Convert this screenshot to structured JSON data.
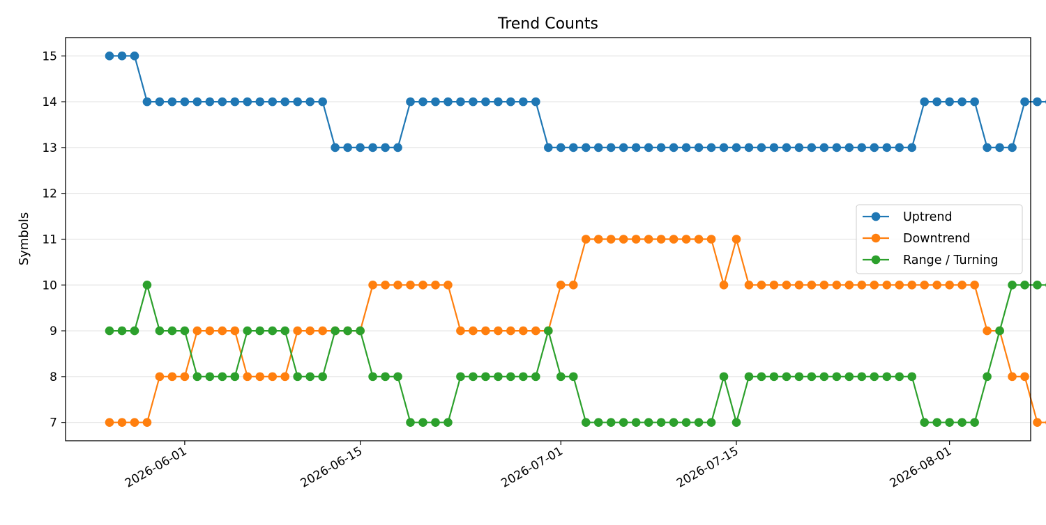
{
  "chart_data": {
    "type": "line",
    "title": "Trend Counts",
    "xlabel": "",
    "ylabel": "Symbols",
    "start_date": "2026-05-26",
    "x_tick_labels": [
      "2026-06-01",
      "2026-06-15",
      "2026-07-01",
      "2026-07-15",
      "2026-08-01"
    ],
    "y_ticks": [
      7,
      8,
      9,
      10,
      11,
      12,
      13,
      14,
      15
    ],
    "ylim": [
      6.6,
      15.4
    ],
    "grid": "horizontal",
    "legend_position": "right",
    "series": [
      {
        "name": "Uptrend",
        "color": "#1f77b4",
        "values": [
          15,
          15,
          15,
          14,
          14,
          14,
          14,
          14,
          14,
          14,
          14,
          14,
          14,
          14,
          14,
          14,
          14,
          14,
          13,
          13,
          13,
          13,
          13,
          13,
          14,
          14,
          14,
          14,
          14,
          14,
          14,
          14,
          14,
          14,
          14,
          13,
          13,
          13,
          13,
          13,
          13,
          13,
          13,
          13,
          13,
          13,
          13,
          13,
          13,
          13,
          13,
          13,
          13,
          13,
          13,
          13,
          13,
          13,
          13,
          13,
          13,
          13,
          13,
          13,
          13,
          14,
          14,
          14,
          14,
          14,
          13,
          13,
          13,
          14,
          14,
          14,
          14
        ]
      },
      {
        "name": "Downtrend",
        "color": "#ff7f0e",
        "values": [
          7,
          7,
          7,
          7,
          8,
          8,
          8,
          9,
          9,
          9,
          9,
          8,
          8,
          8,
          8,
          9,
          9,
          9,
          9,
          9,
          9,
          10,
          10,
          10,
          10,
          10,
          10,
          10,
          9,
          9,
          9,
          9,
          9,
          9,
          9,
          9,
          10,
          10,
          11,
          11,
          11,
          11,
          11,
          11,
          11,
          11,
          11,
          11,
          11,
          10,
          11,
          10,
          10,
          10,
          10,
          10,
          10,
          10,
          10,
          10,
          10,
          10,
          10,
          10,
          10,
          10,
          10,
          10,
          10,
          10,
          9,
          9,
          8,
          8,
          7,
          7,
          7,
          7
        ]
      },
      {
        "name": "Range / Turning",
        "color": "#2ca02c",
        "values": [
          9,
          9,
          9,
          10,
          9,
          9,
          9,
          8,
          8,
          8,
          8,
          9,
          9,
          9,
          9,
          8,
          8,
          8,
          9,
          9,
          9,
          8,
          8,
          8,
          7,
          7,
          7,
          7,
          8,
          8,
          8,
          8,
          8,
          8,
          8,
          9,
          8,
          8,
          7,
          7,
          7,
          7,
          7,
          7,
          7,
          7,
          7,
          7,
          7,
          8,
          7,
          8,
          8,
          8,
          8,
          8,
          8,
          8,
          8,
          8,
          8,
          8,
          8,
          8,
          8,
          7,
          7,
          7,
          7,
          7,
          8,
          9,
          10,
          10,
          10,
          10,
          10,
          10
        ]
      }
    ]
  }
}
